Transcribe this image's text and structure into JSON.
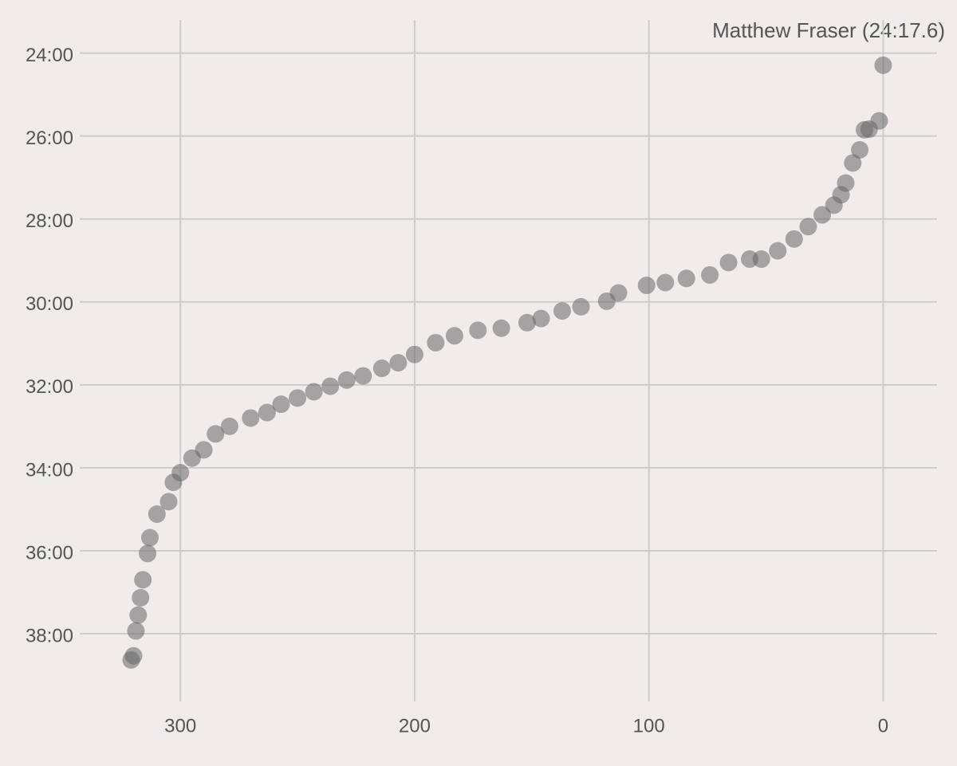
{
  "chart_data": {
    "type": "scatter",
    "annotation": "Matthew Fraser (24:17.6)",
    "color": "#666666",
    "x": [
      0,
      1.7,
      6,
      8,
      10,
      13,
      16,
      18,
      21,
      26,
      32,
      38,
      45,
      52,
      57,
      66,
      74,
      84,
      93,
      101,
      113,
      118,
      129,
      137,
      146,
      152,
      163,
      173,
      183,
      191,
      200,
      207,
      214,
      222,
      229,
      236,
      243,
      250,
      257,
      263,
      270,
      279,
      285,
      290,
      295,
      300,
      303,
      305,
      310,
      313,
      314,
      316,
      317,
      318,
      319,
      320,
      321
    ],
    "values": [
      1457.6,
      1538,
      1550,
      1551,
      1580,
      1599,
      1628,
      1645,
      1660,
      1674,
      1691,
      1709,
      1726,
      1738,
      1738,
      1743,
      1761,
      1766,
      1772,
      1776,
      1787,
      1799,
      1807,
      1813,
      1824,
      1830,
      1838,
      1841,
      1849,
      1859,
      1876,
      1888,
      1896,
      1907,
      1913,
      1922,
      1930,
      1939,
      1948,
      1960,
      1968,
      1980,
      1991,
      2014,
      2026,
      2047,
      2061,
      2089,
      2107,
      2141,
      2164,
      2202,
      2228,
      2253,
      2276,
      2312,
      2318
    ],
    "xlim": [
      345,
      -23
    ],
    "xticks": [
      300,
      200,
      100,
      0
    ],
    "ylim": [
      2378,
      1392
    ],
    "yticks": [
      {
        "value": 1440,
        "label": "24:00"
      },
      {
        "value": 1560,
        "label": "26:00"
      },
      {
        "value": 1680,
        "label": "28:00"
      },
      {
        "value": 1800,
        "label": "30:00"
      },
      {
        "value": 1920,
        "label": "32:00"
      },
      {
        "value": 2040,
        "label": "34:00"
      },
      {
        "value": 2160,
        "label": "36:00"
      },
      {
        "value": 2280,
        "label": "38:00"
      }
    ],
    "grid": true
  }
}
